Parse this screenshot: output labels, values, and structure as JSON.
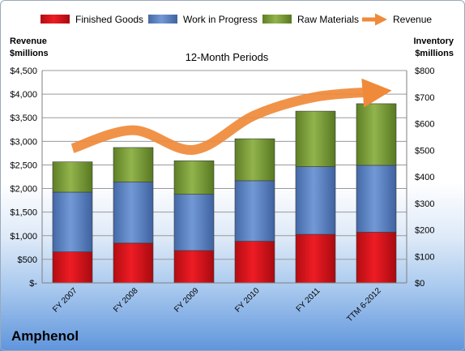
{
  "chart_data": {
    "type": "bar",
    "subtitle": "12-Month Periods",
    "company": "Amphenol",
    "left_axis": {
      "title_line1": "Revenue",
      "title_line2": "$millions",
      "range": [
        0,
        4500
      ],
      "ticks": [
        "$-",
        "$500",
        "$1,000",
        "$1,500",
        "$2,000",
        "$2,500",
        "$3,000",
        "$3,500",
        "$4,000",
        "$4,500"
      ]
    },
    "right_axis": {
      "title_line1": "Inventory",
      "title_line2": "$millions",
      "range": [
        0,
        800
      ],
      "ticks": [
        "$0",
        "$100",
        "$200",
        "$300",
        "$400",
        "$500",
        "$600",
        "$700",
        "$800"
      ]
    },
    "categories": [
      "FY 2007",
      "FY 2008",
      "FY 2009",
      "FY 2010",
      "FY 2011",
      "TTM 6-2012"
    ],
    "stacked": true,
    "series": [
      {
        "name": "Finished Goods",
        "kind": "bar",
        "axis": "right",
        "color": "#d9141c",
        "values": [
          117,
          150,
          122,
          157,
          183,
          191
        ]
      },
      {
        "name": "Work in Progress",
        "kind": "bar",
        "axis": "right",
        "color": "#5d87c6",
        "values": [
          225,
          230,
          212,
          228,
          255,
          252
        ]
      },
      {
        "name": "Raw Materials",
        "kind": "bar",
        "axis": "right",
        "color": "#7fa33e",
        "values": [
          114,
          130,
          126,
          158,
          209,
          232
        ]
      },
      {
        "name": "Revenue",
        "kind": "line",
        "axis": "left",
        "color": "#ef8a3a",
        "values": [
          2851,
          3236,
          2820,
          3554,
          3940,
          4050
        ]
      }
    ],
    "legend_position": "top",
    "grid": true
  }
}
